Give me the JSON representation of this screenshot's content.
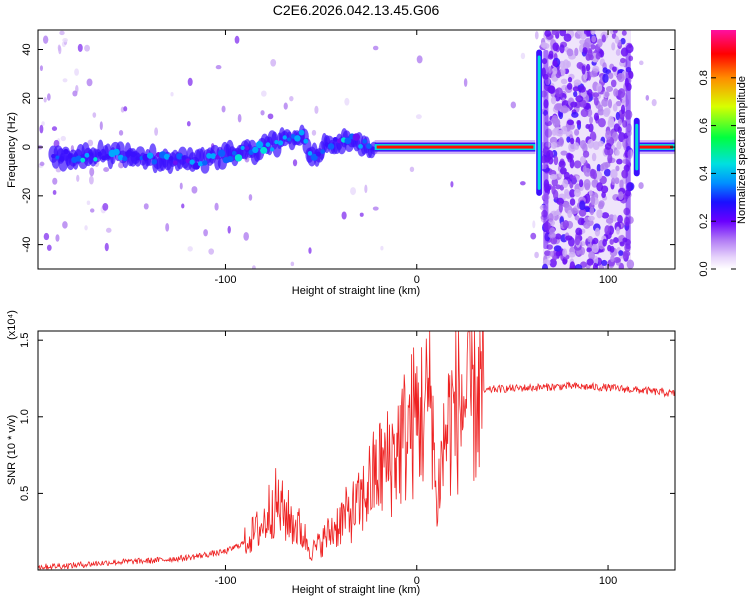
{
  "title": "C2E6.2026.042.13.45.G06",
  "chart_data": [
    {
      "type": "heatmap",
      "xlabel": "Height of straight line (km)",
      "ylabel": "Frequency (Hz)",
      "xlim": [
        -198,
        135
      ],
      "ylim": [
        -50,
        48
      ],
      "xticks": [
        -100,
        0,
        100
      ],
      "yticks": [
        -40,
        -20,
        0,
        20,
        40
      ],
      "colorbar": {
        "label": "Normalized spectral amplitude",
        "ticks": [
          0.0,
          0.2,
          0.4,
          0.6,
          0.8
        ],
        "range": [
          0,
          1
        ],
        "stops": [
          "#ffffff",
          "#d9b8f5",
          "#7a00ff",
          "#1a00ff",
          "#0090ff",
          "#00e5e5",
          "#00ff40",
          "#d8ff00",
          "#ff8c00",
          "#ff0000",
          "#ff00aa"
        ]
      },
      "features": {
        "signal_track_hz": [
          [
            -195,
            -3
          ],
          [
            -170,
            -4
          ],
          [
            -150,
            -3
          ],
          [
            -130,
            -5
          ],
          [
            -115,
            -6
          ],
          [
            -100,
            -4
          ],
          [
            -85,
            -1
          ],
          [
            -70,
            2
          ],
          [
            -60,
            4
          ],
          [
            -55,
            -3
          ],
          [
            -45,
            2
          ],
          [
            -35,
            3
          ],
          [
            -25,
            1
          ],
          [
            -20,
            0
          ],
          [
            0,
            0
          ],
          [
            65,
            0
          ],
          [
            110,
            0
          ],
          [
            135,
            0
          ]
        ],
        "bright_band_km": [
          -22,
          62
        ],
        "noisy_band_km": [
          66,
          112
        ],
        "noisy_left_km": [
          -198,
          -140
        ]
      }
    },
    {
      "type": "line",
      "xlabel": "Height of straight line (km)",
      "ylabel": "SNR (10 * v/v)",
      "y_multiplier": "(x10⁴)",
      "xlim": [
        -198,
        135
      ],
      "ylim": [
        0,
        1.56
      ],
      "xticks": [
        -100,
        0,
        100
      ],
      "yticks": [
        0.5,
        1.0,
        1.5
      ],
      "series": [
        {
          "name": "SNR",
          "color": "#ee2222",
          "x": [
            -198,
            -180,
            -160,
            -140,
            -120,
            -110,
            -100,
            -90,
            -80,
            -75,
            -70,
            -60,
            -55,
            -50,
            -40,
            -30,
            -25,
            -20,
            -15,
            -10,
            -5,
            0,
            5,
            8,
            10,
            15,
            20,
            25,
            30,
            40,
            60,
            80,
            100,
            120,
            135
          ],
          "values": [
            0.02,
            0.03,
            0.05,
            0.06,
            0.08,
            0.1,
            0.12,
            0.18,
            0.3,
            0.45,
            0.38,
            0.25,
            0.12,
            0.18,
            0.32,
            0.42,
            0.55,
            0.65,
            0.7,
            0.8,
            0.9,
            1.0,
            1.05,
            1.2,
            0.4,
            0.9,
            1.05,
            1.1,
            1.15,
            1.18,
            1.19,
            1.2,
            1.19,
            1.17,
            1.15
          ]
        }
      ]
    }
  ]
}
